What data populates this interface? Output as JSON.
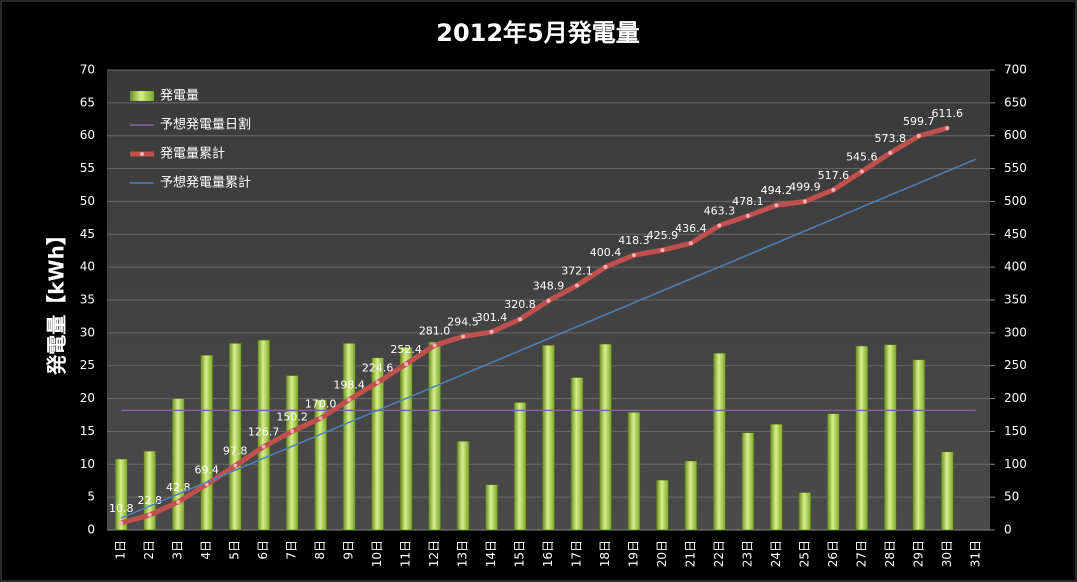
{
  "chart_data": {
    "type": "combo",
    "title": "2012年5月発電量",
    "y_label": "発電量【kWh】",
    "categories": [
      "1日",
      "2日",
      "3日",
      "4日",
      "5日",
      "6日",
      "7日",
      "8日",
      "9日",
      "10日",
      "11日",
      "12日",
      "13日",
      "14日",
      "15日",
      "16日",
      "17日",
      "18日",
      "19日",
      "20日",
      "21日",
      "22日",
      "23日",
      "24日",
      "25日",
      "26日",
      "27日",
      "28日",
      "29日",
      "30日",
      "31日"
    ],
    "ylim": [
      0,
      70
    ],
    "yticks": [
      0,
      5,
      10,
      15,
      20,
      25,
      30,
      35,
      40,
      45,
      50,
      55,
      60,
      65,
      70
    ],
    "y2lim": [
      0,
      700
    ],
    "y2ticks": [
      0,
      50,
      100,
      150,
      200,
      250,
      300,
      350,
      400,
      450,
      500,
      550,
      600,
      650,
      700
    ],
    "grid": true,
    "legend": "top-left",
    "series": [
      {
        "name": "発電量",
        "type": "bar",
        "axis": "y",
        "color": "#9acd32",
        "values": [
          10.8,
          12.0,
          20.0,
          26.6,
          28.4,
          28.9,
          23.5,
          19.8,
          28.4,
          26.2,
          27.8,
          28.6,
          13.5,
          6.9,
          19.4,
          28.1,
          23.2,
          28.3,
          17.9,
          7.6,
          10.5,
          26.9,
          14.8,
          16.1,
          5.7,
          17.7,
          28.0,
          28.2,
          25.9,
          11.9,
          null
        ]
      },
      {
        "name": "予想発電量日割",
        "type": "line",
        "axis": "y",
        "color": "#8064a2",
        "values": [
          18.2,
          18.2,
          18.2,
          18.2,
          18.2,
          18.2,
          18.2,
          18.2,
          18.2,
          18.2,
          18.2,
          18.2,
          18.2,
          18.2,
          18.2,
          18.2,
          18.2,
          18.2,
          18.2,
          18.2,
          18.2,
          18.2,
          18.2,
          18.2,
          18.2,
          18.2,
          18.2,
          18.2,
          18.2,
          18.2,
          18.2
        ]
      },
      {
        "name": "発電量累計",
        "type": "line",
        "axis": "y2",
        "color": "#c0504d",
        "markers": true,
        "values": [
          10.8,
          22.8,
          42.8,
          69.4,
          97.8,
          126.7,
          150.2,
          170.0,
          198.4,
          224.6,
          252.4,
          281.0,
          294.5,
          301.4,
          320.8,
          348.9,
          372.1,
          400.4,
          418.3,
          425.9,
          436.4,
          463.3,
          478.1,
          494.2,
          499.9,
          517.6,
          545.6,
          573.8,
          599.7,
          611.6,
          null
        ],
        "value_labels": [
          "10.8",
          "22.8",
          "42.8",
          "69.4",
          "97.8",
          "126.7",
          "150.2",
          "170.0",
          "198.4",
          "224.6",
          "252.4",
          "281.0",
          "294.5",
          "301.4",
          "320.8",
          "348.9",
          "372.1",
          "400.4",
          "418.3",
          "425.9",
          "436.4",
          "463.3",
          "478.1",
          "494.2",
          "499.9",
          "517.6",
          "545.6",
          "573.8",
          "599.7",
          "611.6",
          null
        ]
      },
      {
        "name": "予想発電量累計",
        "type": "line",
        "axis": "y2",
        "color": "#4f81bd",
        "values": [
          18.2,
          36.4,
          54.6,
          72.8,
          91,
          109.2,
          127.4,
          145.6,
          163.8,
          182,
          200.2,
          218.4,
          236.6,
          254.8,
          273,
          291.2,
          309.4,
          327.6,
          345.8,
          364,
          382.2,
          400.4,
          418.6,
          436.8,
          455,
          473.2,
          491.4,
          509.6,
          527.8,
          546,
          564.2
        ]
      }
    ]
  }
}
